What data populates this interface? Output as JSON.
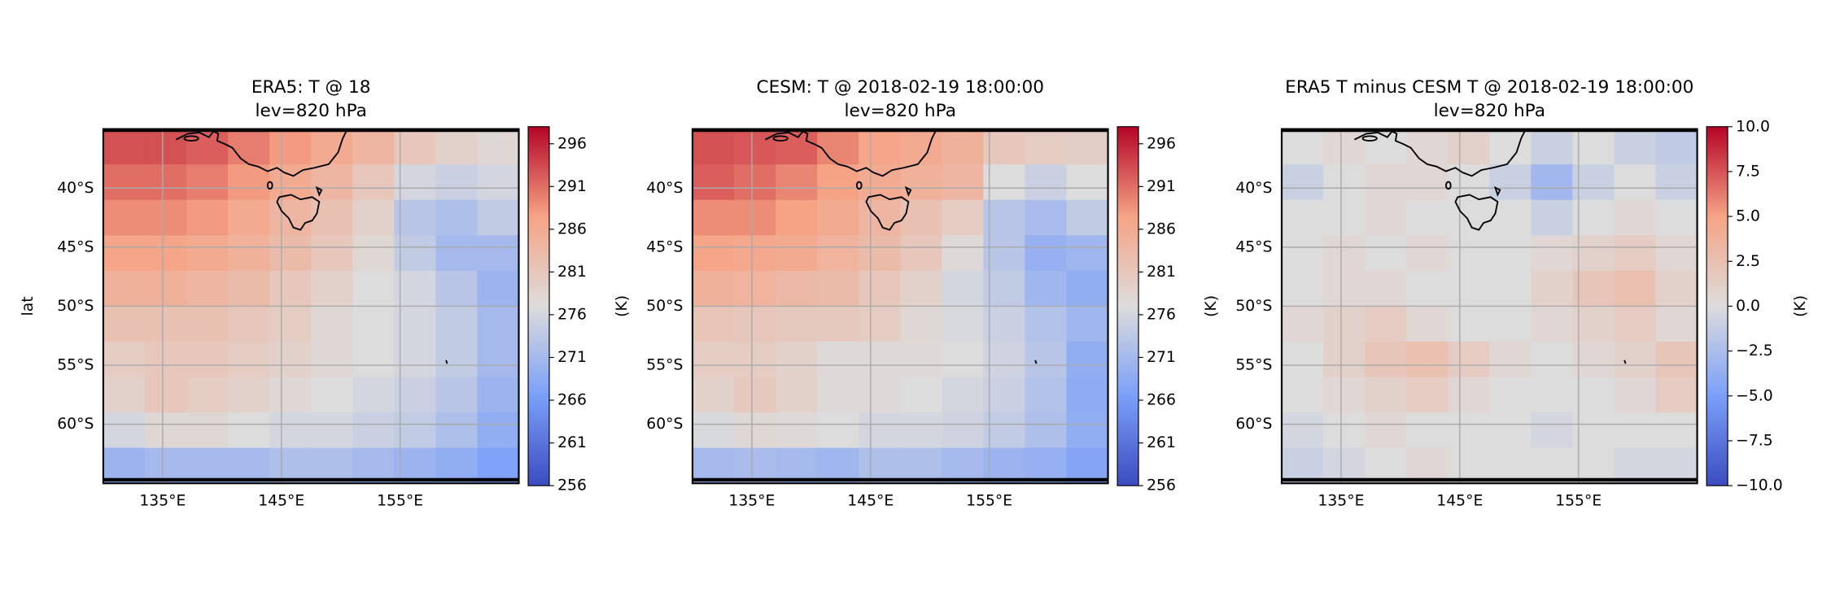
{
  "chart_data": [
    {
      "type": "heatmap",
      "title": "ERA5: T @ 18",
      "subtitle": "lev=820 hPa",
      "ylabel": "lat",
      "colorbar_label": "(K)",
      "xlim": [
        130,
        165
      ],
      "ylim": [
        -65,
        -35
      ],
      "xticks": [
        {
          "value": 135,
          "label": "135°E"
        },
        {
          "value": 145,
          "label": "145°E"
        },
        {
          "value": 155,
          "label": "155°E"
        }
      ],
      "yticks": [
        {
          "value": -40,
          "label": "40°S"
        },
        {
          "value": -45,
          "label": "45°S"
        },
        {
          "value": -50,
          "label": "50°S"
        },
        {
          "value": -55,
          "label": "55°S"
        },
        {
          "value": -60,
          "label": "60°S"
        }
      ],
      "grid": true,
      "colormap": [
        "#3b4cc0",
        "#7b9ff9",
        "#dddcdc",
        "#f6a385",
        "#b40426"
      ],
      "clim": [
        256,
        298
      ],
      "cticks": [
        256,
        261,
        266,
        271,
        276,
        281,
        286,
        291,
        296
      ],
      "x": [
        131.75,
        135.25,
        138.75,
        142.25,
        145.75,
        149.25,
        152.75,
        156.25,
        159.75,
        163.25
      ],
      "y": [
        -36.5,
        -39.5,
        -42.5,
        -45.5,
        -48.5,
        -51.5,
        -54.5,
        -57.5,
        -60.5,
        -63.5
      ],
      "values": [
        [
          293,
          293,
          292,
          290,
          288,
          286,
          284,
          281,
          279,
          278
        ],
        [
          291,
          291,
          290,
          288,
          286,
          284,
          281,
          276,
          275,
          276
        ],
        [
          289,
          289,
          288,
          286,
          284,
          282,
          279,
          273,
          272,
          274
        ],
        [
          287,
          287,
          286,
          285,
          283,
          281,
          278,
          274,
          271,
          271
        ],
        [
          285,
          285,
          284,
          283,
          281,
          279,
          277,
          276,
          273,
          270
        ],
        [
          282,
          282,
          282,
          281,
          280,
          278,
          277,
          276,
          274,
          271
        ],
        [
          280,
          281,
          281,
          280,
          279,
          278,
          277,
          276,
          274,
          271
        ],
        [
          279,
          281,
          280,
          279,
          278,
          277,
          276,
          275,
          273,
          270
        ],
        [
          276,
          278,
          278,
          277,
          276,
          276,
          275,
          274,
          272,
          269
        ],
        [
          270,
          271,
          271,
          271,
          272,
          272,
          271,
          270,
          269,
          267
        ]
      ]
    },
    {
      "type": "heatmap",
      "title": "CESM: T @ 2018-02-19 18:00:00",
      "subtitle": "lev=820 hPa",
      "colorbar_label": "(K)",
      "xlim": [
        130,
        165
      ],
      "ylim": [
        -65,
        -35
      ],
      "xticks": [
        {
          "value": 135,
          "label": "135°E"
        },
        {
          "value": 145,
          "label": "145°E"
        },
        {
          "value": 155,
          "label": "155°E"
        }
      ],
      "yticks": [
        {
          "value": -40,
          "label": "40°S"
        },
        {
          "value": -45,
          "label": "45°S"
        },
        {
          "value": -50,
          "label": "50°S"
        },
        {
          "value": -55,
          "label": "55°S"
        },
        {
          "value": -60,
          "label": "60°S"
        }
      ],
      "grid": true,
      "colormap": [
        "#3b4cc0",
        "#7b9ff9",
        "#dddcdc",
        "#f6a385",
        "#b40426"
      ],
      "clim": [
        256,
        298
      ],
      "cticks": [
        256,
        261,
        266,
        271,
        276,
        281,
        286,
        291,
        296
      ],
      "x": [
        131.75,
        135.25,
        138.75,
        142.25,
        145.75,
        149.25,
        152.75,
        156.25,
        159.75,
        163.25
      ],
      "y": [
        -36.5,
        -39.5,
        -42.5,
        -45.5,
        -48.5,
        -51.5,
        -54.5,
        -57.5,
        -60.5,
        -63.5
      ],
      "values": [
        [
          293,
          292.5,
          292,
          289.5,
          287,
          286,
          285,
          281,
          280,
          279.5
        ],
        [
          292,
          291,
          289.5,
          287.5,
          286,
          285,
          284,
          277,
          275,
          277
        ],
        [
          289,
          289,
          287.5,
          286,
          284,
          282,
          280,
          273,
          271.5,
          274
        ],
        [
          287,
          286.5,
          286,
          284.5,
          283,
          281,
          277.5,
          273,
          269.5,
          270.5
        ],
        [
          285,
          284.5,
          283.5,
          283,
          281,
          279,
          276,
          274,
          270.5,
          269
        ],
        [
          281.5,
          281,
          280.5,
          280.5,
          280,
          278,
          276.5,
          275,
          272.5,
          270.5
        ],
        [
          280,
          280,
          279,
          277.5,
          277.5,
          277.5,
          277,
          275.5,
          273,
          269
        ],
        [
          279,
          280.5,
          279,
          277.5,
          277.5,
          277,
          276,
          275,
          272.5,
          268.5
        ],
        [
          276.5,
          278,
          277.5,
          277,
          276,
          276,
          275.5,
          274,
          272,
          269
        ],
        [
          271,
          271.5,
          271,
          270.5,
          272,
          272,
          271,
          270,
          269.5,
          267.5
        ]
      ]
    },
    {
      "type": "heatmap",
      "title": "ERA5 T minus CESM T @ 2018-02-19 18:00:00",
      "subtitle": "lev=820 hPa",
      "colorbar_label": "(K)",
      "xlim": [
        130,
        165
      ],
      "ylim": [
        -65,
        -35
      ],
      "xticks": [
        {
          "value": 135,
          "label": "135°E"
        },
        {
          "value": 145,
          "label": "145°E"
        },
        {
          "value": 155,
          "label": "155°E"
        }
      ],
      "yticks": [
        {
          "value": -40,
          "label": "40°S"
        },
        {
          "value": -45,
          "label": "45°S"
        },
        {
          "value": -50,
          "label": "50°S"
        },
        {
          "value": -55,
          "label": "55°S"
        },
        {
          "value": -60,
          "label": "60°S"
        }
      ],
      "grid": true,
      "colormap": [
        "#3b4cc0",
        "#7b9ff9",
        "#dddcdc",
        "#f6a385",
        "#b40426"
      ],
      "clim": [
        -10,
        10
      ],
      "cticks": [
        {
          "value": -10,
          "label": "−10.0"
        },
        {
          "value": -7.5,
          "label": "−7.5"
        },
        {
          "value": -5,
          "label": "−5.0"
        },
        {
          "value": -2.5,
          "label": "−2.5"
        },
        {
          "value": 0,
          "label": "0.0"
        },
        2.5,
        {
          "value": 5,
          "label": "5.0"
        },
        7.5,
        {
          "value": 10,
          "label": "10.0"
        }
      ],
      "x": [
        131.75,
        135.25,
        138.75,
        142.25,
        145.75,
        149.25,
        152.75,
        156.25,
        159.75,
        163.25
      ],
      "y": [
        -36.5,
        -39.5,
        -42.5,
        -45.5,
        -48.5,
        -51.5,
        -54.5,
        -57.5,
        -60.5,
        -63.5
      ],
      "values": [
        [
          0,
          0.5,
          0,
          0.5,
          1,
          0,
          -1,
          0,
          -1,
          -1.5
        ],
        [
          -1,
          0,
          0.5,
          0.5,
          0,
          -1,
          -3,
          -1,
          0,
          -1
        ],
        [
          0,
          0,
          0.5,
          0,
          0,
          0,
          -1,
          0,
          0.5,
          0
        ],
        [
          0,
          0.5,
          0,
          0.5,
          0,
          0,
          0.5,
          1,
          1.5,
          0.5
        ],
        [
          0,
          0.5,
          0.5,
          0,
          0,
          0,
          1,
          2,
          2.5,
          1
        ],
        [
          0.5,
          1,
          1.5,
          0.5,
          0,
          0,
          0.5,
          1,
          1.5,
          0.5
        ],
        [
          0,
          1,
          2,
          2.5,
          1.5,
          0.5,
          0,
          0.5,
          1,
          2
        ],
        [
          0,
          0.5,
          1,
          1.5,
          0.5,
          0,
          0,
          0,
          0.5,
          1.5
        ],
        [
          -0.5,
          0,
          0.5,
          0,
          0,
          0,
          -0.5,
          0,
          0,
          0
        ],
        [
          -1,
          -0.5,
          0,
          0.5,
          0,
          0,
          0,
          0,
          -0.5,
          -0.5
        ]
      ]
    }
  ]
}
